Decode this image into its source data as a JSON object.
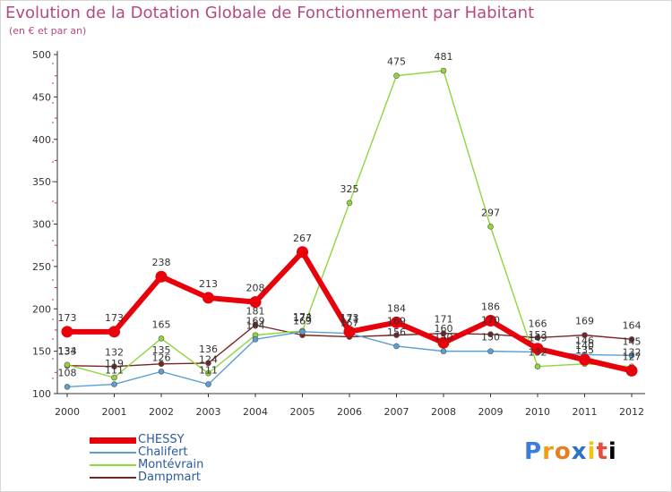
{
  "chart_data": {
    "type": "line",
    "title": "Evolution de la Dotation Globale de Fonctionnement par Habitant",
    "subtitle": "(en € et par an)",
    "xlabel": "",
    "ylabel": "",
    "categories": [
      "2000",
      "2001",
      "2002",
      "2003",
      "2004",
      "2005",
      "2006",
      "2007",
      "2008",
      "2009",
      "2010",
      "2011",
      "2012"
    ],
    "ylim": [
      100,
      500
    ],
    "yticks": [
      "100",
      "150",
      "200",
      "250",
      "300",
      "350",
      "400",
      "450",
      "500"
    ],
    "series": [
      {
        "name": "CHESSY",
        "color": "#e8000a",
        "values": [
          173,
          173,
          238,
          213,
          208,
          267,
          173,
          184,
          160,
          186,
          153,
          140,
          127
        ],
        "labels": [
          "173",
          "173",
          "238",
          "213",
          "208",
          "267",
          "173",
          "184",
          "160",
          "186",
          "153",
          "140",
          "127"
        ]
      },
      {
        "name": "Chalifert",
        "color": "#5a9fd4",
        "values": [
          108,
          111,
          126,
          111,
          164,
          173,
          171,
          156,
          150,
          150,
          149,
          146,
          145
        ],
        "labels": [
          "108",
          "111",
          "126",
          "111",
          "164",
          "173",
          "171",
          "156",
          "150",
          "150",
          "149",
          "146",
          "145"
        ]
      },
      {
        "name": "Montévrain",
        "color": "#8ed63a",
        "values": [
          134,
          119,
          165,
          124,
          169,
          174,
          325,
          475,
          481,
          297,
          132,
          135,
          132
        ],
        "labels": [
          "134",
          "119",
          "165",
          "124",
          "169",
          "174",
          "325",
          "475",
          "481",
          "297",
          "132",
          "135",
          "132"
        ]
      },
      {
        "name": "Dampmart",
        "color": "#7a2424",
        "values": [
          133,
          132,
          135,
          136,
          181,
          169,
          167,
          169,
          171,
          170,
          166,
          169,
          164
        ],
        "labels": [
          "133",
          "132",
          "135",
          "136",
          "181",
          "169",
          "167",
          "169",
          "171",
          "170",
          "166",
          "169",
          "164"
        ]
      }
    ]
  },
  "logo": {
    "letters": [
      "P",
      "r",
      "o",
      "x",
      "i",
      "t",
      "i"
    ]
  }
}
